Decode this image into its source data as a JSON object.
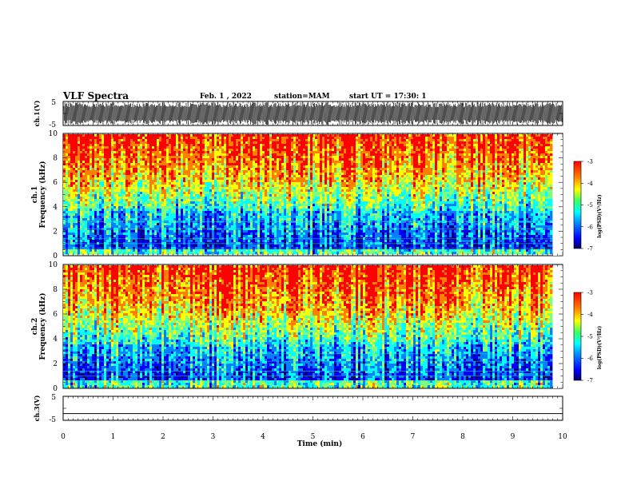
{
  "header": {
    "title": "VLF Spectra",
    "date": "Feb. 1 , 2022",
    "station": "station=MAM",
    "start": "start UT = 17:30: 1"
  },
  "chart_data": [
    {
      "type": "line",
      "panel": "ch1-waveform",
      "ylabel": "ch.1(V)",
      "ylim": [
        -5,
        5
      ],
      "yticks": [
        "5",
        "-5"
      ],
      "description_visible": "dense black oscillating waveform"
    },
    {
      "type": "heatmap",
      "panel": "ch1-spectrogram",
      "ylabel": [
        "ch.1",
        "Frequency (kHz)"
      ],
      "ylim": [
        0,
        10
      ],
      "yticks": [
        "0",
        "2",
        "4",
        "6",
        "8",
        "10"
      ],
      "colorbar": {
        "label": "log(PSD)(V²/Hz)",
        "range": [
          -7,
          -3
        ],
        "ticks": [
          "-3",
          "-4",
          "-5",
          "-6",
          "-7"
        ]
      },
      "data_xlim": [
        0,
        9.8
      ]
    },
    {
      "type": "heatmap",
      "panel": "ch2-spectrogram",
      "ylabel": [
        "ch.2",
        "Frequency (kHz)"
      ],
      "ylim": [
        0,
        10
      ],
      "yticks": [
        "0",
        "2",
        "4",
        "6",
        "8",
        "10"
      ],
      "colorbar": {
        "label": "log(PSD)(V²/Hz)",
        "range": [
          -7,
          -3
        ],
        "ticks": [
          "-3",
          "-4",
          "-5",
          "-6",
          "-7"
        ]
      },
      "data_xlim": [
        0,
        9.8
      ]
    },
    {
      "type": "line",
      "panel": "ch3-waveform",
      "ylabel": "ch.3(V)",
      "ylim": [
        -5,
        5
      ],
      "yticks": [
        "5",
        "-5"
      ],
      "x": [
        0,
        10
      ],
      "y": [
        -2.2,
        -2.2
      ]
    }
  ],
  "xaxis": {
    "label": "Time (min)",
    "xlim": [
      0,
      10
    ],
    "ticks": [
      "0",
      "1",
      "2",
      "3",
      "4",
      "5",
      "6",
      "7",
      "8",
      "9",
      "10"
    ]
  },
  "colors": {
    "spectrogram_scale": [
      "#00007f",
      "#0000ff",
      "#007fff",
      "#00ffff",
      "#7fff7f",
      "#ffff00",
      "#ff7f00",
      "#ff0000"
    ]
  }
}
